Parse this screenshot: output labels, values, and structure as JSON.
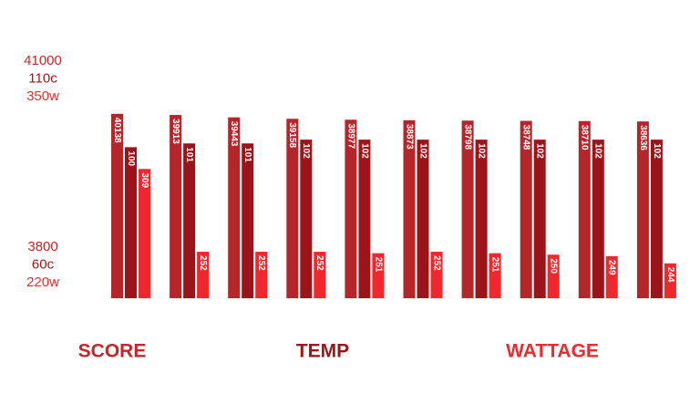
{
  "chart_data": {
    "type": "bar",
    "series": [
      {
        "name": "SCORE",
        "color": "#b5262b",
        "legend_color": "#c3272b",
        "values": [
          40138,
          39913,
          39443,
          39158,
          38977,
          38873,
          38798,
          38748,
          38710,
          38636
        ],
        "ylim": [
          3800,
          41000
        ],
        "yticks": [
          3800,
          41000
        ]
      },
      {
        "name": "TEMP",
        "color": "#9b1419",
        "legend_color": "#9e1519",
        "values": [
          100,
          101,
          101,
          102,
          102,
          102,
          102,
          102,
          102,
          102
        ],
        "ylim": [
          60,
          110
        ],
        "yticks": [
          {
            "value": 60,
            "label": "60c"
          },
          {
            "value": 110,
            "label": "110c"
          }
        ]
      },
      {
        "name": "WATTAGE",
        "color": "#f0272d",
        "legend_color": "#ee2a2f",
        "values": [
          309,
          252,
          252,
          252,
          251,
          252,
          251,
          250,
          249,
          244
        ],
        "ylim": [
          220,
          350
        ],
        "yticks": [
          {
            "value": 220,
            "label": "220w"
          },
          {
            "value": 350,
            "label": "350w"
          }
        ]
      }
    ]
  }
}
